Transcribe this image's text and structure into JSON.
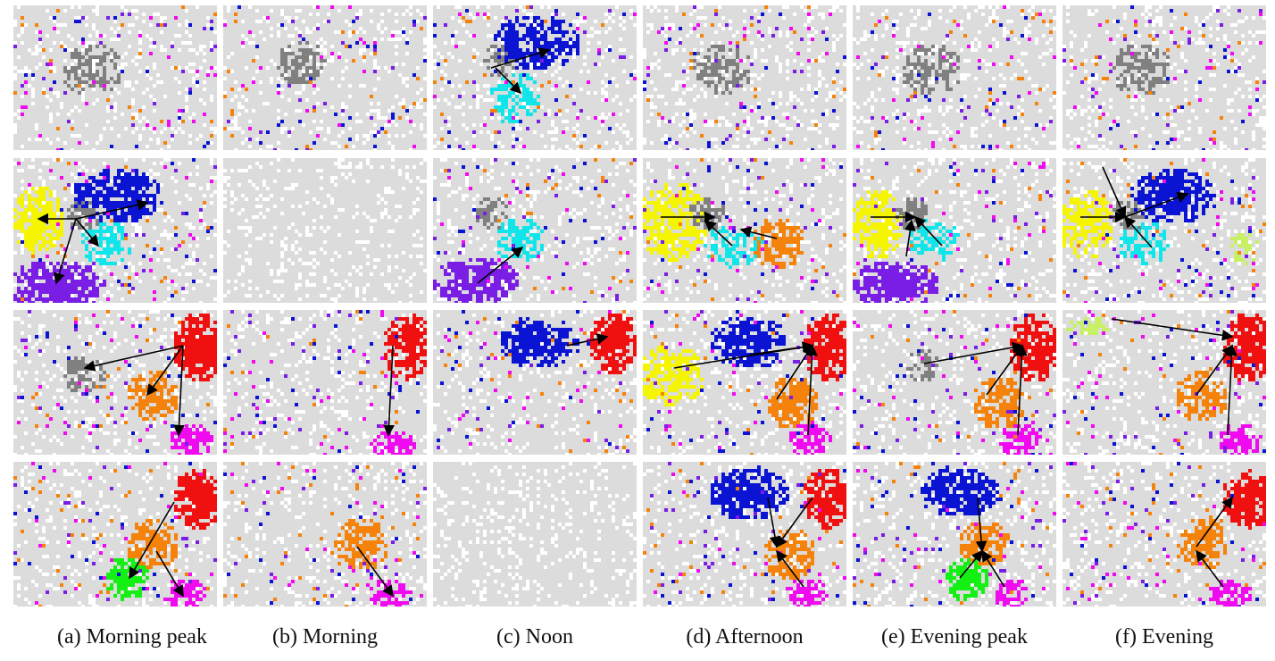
{
  "figure": {
    "captions": [
      "(a) Morning peak",
      "(b) Morning",
      "(c) Noon",
      "(d) Afternoon",
      "(e) Evening peak",
      "(f) Evening"
    ]
  },
  "colors": {
    "background_grid": "#dcdcdc",
    "gray": "#808080",
    "blue": "#0a14d2",
    "cyan": "#10e6ea",
    "yellow": "#f5f500",
    "violet": "#7a1ee6",
    "orange": "#f5820a",
    "red": "#f01010",
    "magenta": "#f00af0",
    "green": "#14f014",
    "lime": "#c8f064",
    "arrow": "#000000"
  },
  "cluster_map": {
    "rows": [
      "row-1",
      "row-2",
      "row-3",
      "row-4"
    ],
    "columns": [
      "morning-peak",
      "morning",
      "noon",
      "afternoon",
      "evening-peak",
      "evening"
    ]
  }
}
